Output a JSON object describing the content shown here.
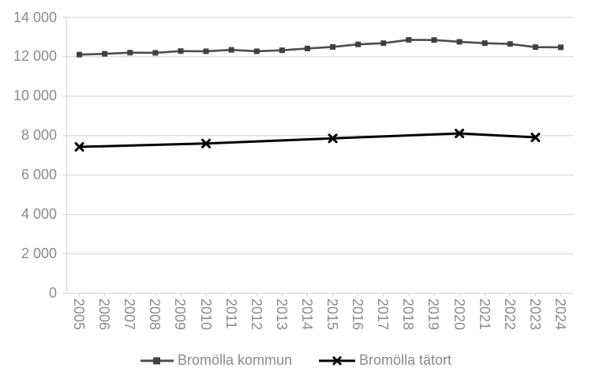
{
  "chart_data": {
    "type": "line",
    "title": "",
    "xlabel": "",
    "ylabel": "",
    "categories": [
      "2005",
      "2006",
      "2007",
      "2008",
      "2009",
      "2010",
      "2011",
      "2012",
      "2013",
      "2014",
      "2015",
      "2016",
      "2017",
      "2018",
      "2019",
      "2020",
      "2021",
      "2022",
      "2023",
      "2024"
    ],
    "series": [
      {
        "name": "Bromölla kommun",
        "marker": "square",
        "line_color": "#4d4d4d",
        "marker_color": "#404040",
        "x": [
          "2005",
          "2006",
          "2007",
          "2008",
          "2009",
          "2010",
          "2011",
          "2012",
          "2013",
          "2014",
          "2015",
          "2016",
          "2017",
          "2018",
          "2019",
          "2020",
          "2021",
          "2022",
          "2023",
          "2024"
        ],
        "values": [
          12110,
          12150,
          12210,
          12200,
          12290,
          12280,
          12350,
          12280,
          12330,
          12420,
          12500,
          12630,
          12690,
          12860,
          12850,
          12760,
          12690,
          12650,
          12490,
          12480
        ]
      },
      {
        "name": "Bromölla tätort",
        "marker": "x",
        "line_color": "#000000",
        "marker_color": "#000000",
        "x": [
          "2005",
          "2010",
          "2015",
          "2020",
          "2023"
        ],
        "values": [
          7430,
          7600,
          7860,
          8110,
          7910
        ]
      }
    ],
    "ylim": [
      0,
      14000
    ],
    "y_tick_values": [
      0,
      2000,
      4000,
      6000,
      8000,
      10000,
      12000,
      14000
    ],
    "y_tick_labels": [
      "0",
      "2 000",
      "4 000",
      "6 000",
      "8 000",
      "10 000",
      "12 000",
      "14 000"
    ],
    "grid": true,
    "gridline_color": "#d9d9d9",
    "axis_color": "#d9d9d9",
    "label_color": "#8a8a8a",
    "legend_position": "bottom"
  },
  "legend": {
    "items": [
      {
        "label": "Bromölla kommun"
      },
      {
        "label": "Bromölla tätort"
      }
    ]
  }
}
